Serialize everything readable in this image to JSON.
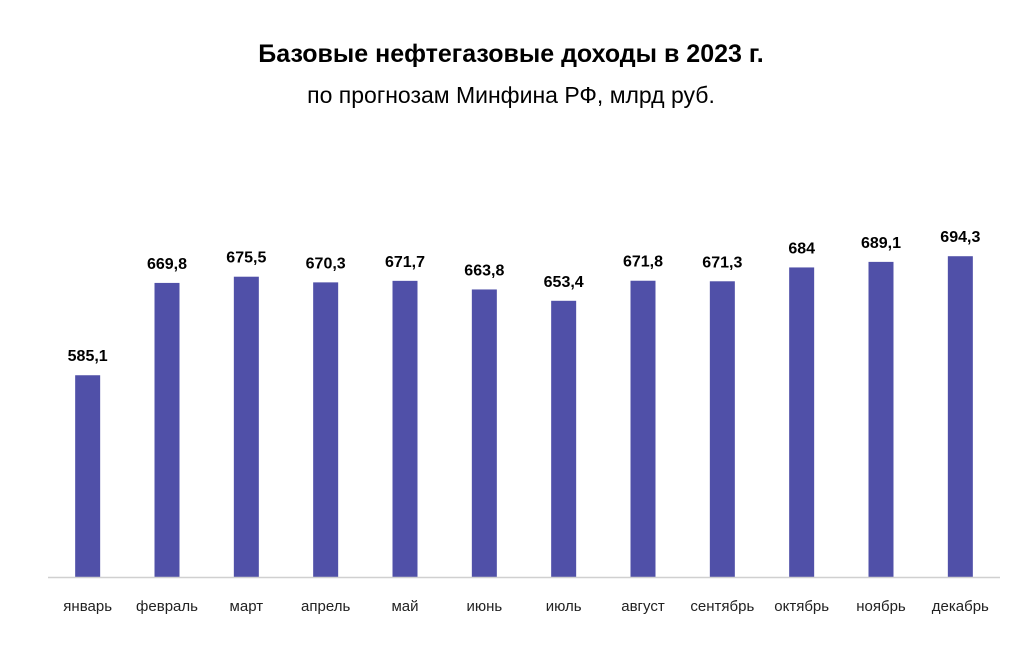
{
  "chart_data": {
    "type": "bar",
    "title": "Базовые нефтегазовые доходы в 2023 г.",
    "subtitle": "по прогнозам Минфина РФ, млрд руб.",
    "categories": [
      "январь",
      "февраль",
      "март",
      "апрель",
      "май",
      "июнь",
      "июль",
      "август",
      "сентябрь",
      "октябрь",
      "ноябрь",
      "декабрь"
    ],
    "values": [
      585.1,
      669.8,
      675.5,
      670.3,
      671.7,
      663.8,
      653.4,
      671.8,
      671.3,
      684,
      689.1,
      694.3
    ],
    "labels": [
      "585,1",
      "669,8",
      "675,5",
      "670,3",
      "671,7",
      "663,8",
      "653,4",
      "671,8",
      "671,3",
      "684",
      "689,1",
      "694,3"
    ],
    "xlabel": "",
    "ylabel": "",
    "ylim": [
      400,
      720
    ],
    "grid": false,
    "bar_color": "#5050A8"
  }
}
